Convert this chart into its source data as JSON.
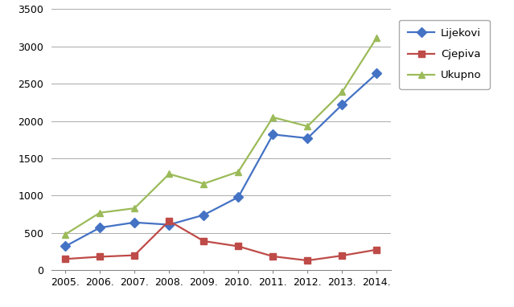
{
  "years": [
    "2005.",
    "2006.",
    "2007.",
    "2008.",
    "2009.",
    "2010.",
    "2011.",
    "2012.",
    "2013.",
    "2014."
  ],
  "lijekovi": [
    320,
    570,
    640,
    610,
    740,
    980,
    1820,
    1770,
    2220,
    2640
  ],
  "cjepiva": [
    150,
    180,
    200,
    660,
    390,
    320,
    185,
    130,
    195,
    275
  ],
  "ukupno": [
    480,
    770,
    830,
    1290,
    1160,
    1320,
    2050,
    1930,
    2390,
    3120
  ],
  "lijekovi_color": "#4472C4",
  "cjepiva_color": "#BE4B48",
  "ukupno_color": "#9BBB59",
  "marker_lijekovi": "D",
  "marker_cjepiva": "s",
  "marker_ukupno": "^",
  "ylim": [
    0,
    3500
  ],
  "yticks": [
    0,
    500,
    1000,
    1500,
    2000,
    2500,
    3000,
    3500
  ],
  "legend_labels": [
    "Lijekovi",
    "Cjepiva",
    "Ukupno"
  ],
  "grid_color": "#AAAAAA",
  "background_color": "#FFFFFF",
  "line_width": 1.6,
  "marker_size": 6
}
